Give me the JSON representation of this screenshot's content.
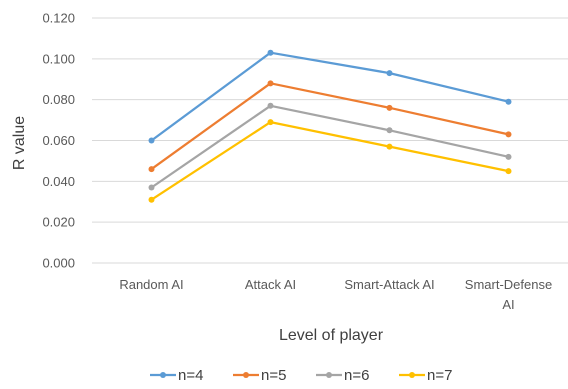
{
  "chart_data": {
    "type": "line",
    "title": "",
    "xlabel": "Level of player",
    "ylabel": "R value",
    "ylim": [
      0,
      0.12
    ],
    "yticks": [
      "0.000",
      "0.020",
      "0.040",
      "0.060",
      "0.080",
      "0.100",
      "0.120"
    ],
    "categories": [
      [
        "Random AI"
      ],
      [
        "Attack AI"
      ],
      [
        "Smart-Attack AI"
      ],
      [
        "Smart-Defense",
        "AI"
      ]
    ],
    "grid": true,
    "legend_position": "bottom",
    "series": [
      {
        "name": "n=4",
        "color": "#5b9bd5",
        "values": [
          0.06,
          0.103,
          0.093,
          0.079
        ]
      },
      {
        "name": "n=5",
        "color": "#ed7d31",
        "values": [
          0.046,
          0.088,
          0.076,
          0.063
        ]
      },
      {
        "name": "n=6",
        "color": "#a5a5a5",
        "values": [
          0.037,
          0.077,
          0.065,
          0.052
        ]
      },
      {
        "name": "n=7",
        "color": "#ffc000",
        "values": [
          0.031,
          0.069,
          0.057,
          0.045
        ]
      }
    ]
  }
}
